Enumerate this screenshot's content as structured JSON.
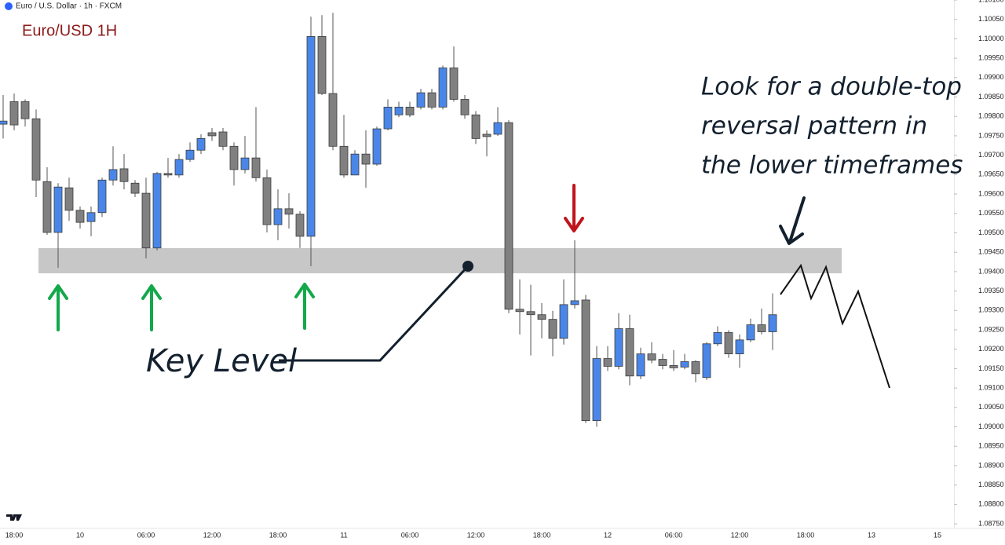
{
  "chart_data": {
    "type": "candlestick",
    "header": "Euro / U.S. Dollar · 1h · FXCM",
    "title": "Euro/USD 1H",
    "key_label": "Key Level",
    "note": [
      "Look for a double-top",
      "reversal pattern in",
      "the lower timeframes"
    ],
    "up_color": "#4a86e8",
    "down_color": "#808080",
    "categories": [
      null,
      "18:00",
      null,
      null,
      null,
      null,
      null,
      "10",
      null,
      null,
      null,
      null,
      null,
      "06:00",
      null,
      null,
      null,
      null,
      null,
      "12:00",
      null,
      null,
      null,
      null,
      null,
      "18:00",
      null,
      null,
      null,
      null,
      null,
      "11",
      null,
      null,
      null,
      null,
      null,
      "06:00",
      null,
      null,
      null,
      null,
      null,
      "12:00",
      null,
      null,
      null,
      null,
      null,
      "18:00",
      null,
      null,
      null,
      null,
      null,
      "12",
      null,
      null,
      null,
      null,
      null,
      "06:00",
      null,
      null,
      null,
      null,
      null,
      "12:00",
      null,
      null,
      null,
      null,
      null,
      "18:00",
      null,
      null,
      null,
      null,
      null,
      "13",
      null,
      null,
      null,
      null,
      null,
      "15",
      null
    ],
    "open": [
      1.0978,
      1.09838,
      1.09838,
      1.09794,
      1.09632,
      1.09501,
      1.09616,
      1.09558,
      1.09529,
      1.09552,
      1.09636,
      1.09665,
      1.09628,
      1.09602,
      1.09461,
      1.09653,
      1.09649,
      1.09689,
      1.09713,
      1.09758,
      1.0976,
      1.09723,
      1.09663,
      1.09693,
      1.09642,
      1.09521,
      1.09562,
      1.09548,
      1.09491,
      1.10006,
      1.09859,
      1.09723,
      1.09649,
      1.09703,
      1.09677,
      1.09768,
      1.09804,
      1.09824,
      1.09824,
      1.09861,
      1.09824,
      1.09925,
      1.09844,
      1.09804,
      1.09754,
      1.09754,
      1.09784,
      1.09303,
      1.09297,
      1.09289,
      1.09277,
      1.09228,
      1.09315,
      1.09327,
      1.09016,
      1.09176,
      1.09156,
      1.09253,
      1.09131,
      1.09188,
      1.09174,
      1.09158,
      1.09154,
      1.09168,
      1.09127,
      1.09214,
      1.09243,
      1.09188,
      1.09224,
      1.09263,
      1.09245,
      null,
      null,
      null,
      null,
      null,
      null,
      null,
      null,
      null,
      null,
      null,
      null,
      null,
      null,
      null,
      null
    ],
    "high": [
      1.09855,
      1.09859,
      1.09844,
      1.09818,
      1.09669,
      1.09628,
      1.09642,
      1.09568,
      1.09568,
      1.09642,
      1.09723,
      1.09703,
      1.09636,
      1.09642,
      1.09657,
      1.09693,
      1.09703,
      1.09733,
      1.09754,
      1.0977,
      1.0977,
      1.09733,
      1.0975,
      1.09824,
      1.09663,
      1.09612,
      1.09602,
      1.09556,
      1.10057,
      1.10061,
      1.10067,
      1.09804,
      1.09713,
      1.09764,
      1.09774,
      1.09844,
      1.09838,
      1.09838,
      1.09871,
      1.09871,
      1.09931,
      1.0998,
      1.09855,
      1.09814,
      1.09764,
      1.09824,
      1.0979,
      1.0938,
      1.09366,
      1.09319,
      1.09299,
      1.0938,
      1.09481,
      1.0934,
      1.09208,
      1.09208,
      1.09293,
      1.09289,
      1.09204,
      1.09218,
      1.09188,
      1.09198,
      1.09188,
      1.09172,
      1.09218,
      1.09259,
      1.09249,
      1.09238,
      1.09279,
      1.09305,
      1.09344,
      null,
      null,
      null,
      null,
      null,
      null,
      null,
      null,
      null,
      null,
      null,
      null,
      null,
      null,
      null,
      null
    ],
    "low": [
      1.09743,
      1.09764,
      1.09774,
      1.09592,
      1.09495,
      1.0941,
      1.09531,
      1.09511,
      1.09491,
      1.09541,
      1.09622,
      1.09612,
      1.09592,
      1.09434,
      1.09455,
      1.09642,
      1.09642,
      1.09683,
      1.09703,
      1.09737,
      1.09713,
      1.09622,
      1.09653,
      1.09632,
      1.09501,
      1.09481,
      1.09511,
      1.09461,
      1.09414,
      1.09855,
      1.09713,
      1.09642,
      1.09649,
      1.09616,
      1.09673,
      1.09764,
      1.09798,
      1.09798,
      1.09818,
      1.09818,
      1.09818,
      1.09838,
      1.09794,
      1.09729,
      1.09697,
      1.0975,
      1.09293,
      1.09238,
      1.09184,
      1.09228,
      1.09182,
      1.09212,
      1.09305,
      1.0901,
      1.09,
      1.09144,
      1.09148,
      1.09107,
      1.09123,
      1.09164,
      1.09148,
      1.09144,
      1.09148,
      1.09115,
      1.09121,
      1.09208,
      1.09178,
      1.09152,
      1.09218,
      1.09238,
      1.09198,
      null,
      null,
      null,
      null,
      null,
      null,
      null,
      null,
      null,
      null,
      null,
      null,
      null,
      null,
      null,
      null
    ],
    "close": [
      1.09788,
      1.09778,
      1.09794,
      1.09636,
      1.09501,
      1.09618,
      1.09558,
      1.09527,
      1.09552,
      1.09636,
      1.09663,
      1.09632,
      1.09602,
      1.09461,
      1.09653,
      1.09649,
      1.09689,
      1.09713,
      1.09743,
      1.0975,
      1.09723,
      1.09663,
      1.09693,
      1.09642,
      1.09521,
      1.09562,
      1.09548,
      1.09491,
      1.10006,
      1.09859,
      1.09723,
      1.09649,
      1.09703,
      1.09677,
      1.09768,
      1.09824,
      1.09824,
      1.09804,
      1.09861,
      1.09824,
      1.09925,
      1.09844,
      1.09804,
      1.09743,
      1.09748,
      1.09784,
      1.09303,
      1.09297,
      1.09289,
      1.09277,
      1.09228,
      1.09315,
      1.09325,
      1.09016,
      1.09176,
      1.09156,
      1.09253,
      1.09131,
      1.09188,
      1.09172,
      1.09158,
      1.09152,
      1.09168,
      1.09137,
      1.09214,
      1.09243,
      1.09188,
      1.09224,
      1.09263,
      1.09245,
      1.09289,
      null,
      null,
      null,
      null,
      null,
      null,
      null,
      null,
      null,
      null,
      null,
      null,
      null,
      null,
      null,
      null
    ],
    "ylim": [
      1.0874,
      1.101
    ],
    "yticks": [
      {
        "value": 1.0875,
        "label": "1.08750"
      },
      {
        "value": 1.088,
        "label": "1.08800"
      },
      {
        "value": 1.0885,
        "label": "1.08850"
      },
      {
        "value": 1.089,
        "label": "1.08900"
      },
      {
        "value": 1.0895,
        "label": "1.08950"
      },
      {
        "value": 1.09,
        "label": "1.09000"
      },
      {
        "value": 1.0905,
        "label": "1.09050"
      },
      {
        "value": 1.091,
        "label": "1.09100"
      },
      {
        "value": 1.0915,
        "label": "1.09150"
      },
      {
        "value": 1.092,
        "label": "1.09200"
      },
      {
        "value": 1.0925,
        "label": "1.09250"
      },
      {
        "value": 1.093,
        "label": "1.09300"
      },
      {
        "value": 1.0935,
        "label": "1.09350"
      },
      {
        "value": 1.094,
        "label": "1.09400"
      },
      {
        "value": 1.0945,
        "label": "1.09450"
      },
      {
        "value": 1.095,
        "label": "1.09500"
      },
      {
        "value": 1.0955,
        "label": "1.09550"
      },
      {
        "value": 1.096,
        "label": "1.09600"
      },
      {
        "value": 1.0965,
        "label": "1.09650"
      },
      {
        "value": 1.097,
        "label": "1.09700"
      },
      {
        "value": 1.0975,
        "label": "1.09750"
      },
      {
        "value": 1.098,
        "label": "1.09800"
      },
      {
        "value": 1.0985,
        "label": "1.09850"
      },
      {
        "value": 1.099,
        "label": "1.09900"
      },
      {
        "value": 1.0995,
        "label": "1.09950"
      },
      {
        "value": 1.1,
        "label": "1.10000"
      },
      {
        "value": 1.1005,
        "label": "1.10050"
      },
      {
        "value": 1.101,
        "label": "1.10100"
      }
    ]
  }
}
